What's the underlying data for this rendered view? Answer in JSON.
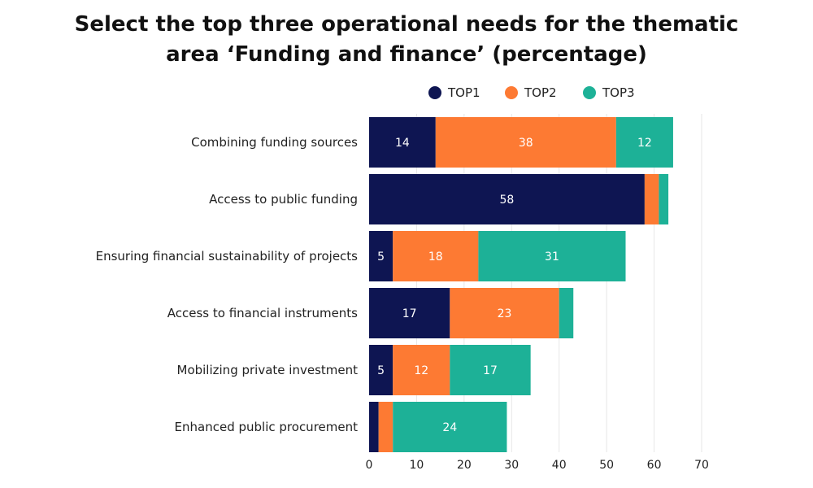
{
  "chart_data": {
    "type": "bar",
    "orientation": "horizontal",
    "stacked": true,
    "title_lines": [
      "Select the top three operational needs for the thematic",
      "area ‘Funding and finance’ (percentage)"
    ],
    "categories": [
      "Combining funding sources",
      "Access to public funding",
      "Ensuring financial sustainability of projects",
      "Access to financial instruments",
      "Mobilizing private investment",
      "Enhanced public procurement"
    ],
    "series": [
      {
        "name": "TOP1",
        "color": "#0e1552",
        "values": [
          14,
          58,
          5,
          17,
          5,
          2
        ]
      },
      {
        "name": "TOP2",
        "color": "#fd7a33",
        "values": [
          38,
          3,
          18,
          23,
          12,
          3
        ]
      },
      {
        "name": "TOP3",
        "color": "#1db197",
        "values": [
          12,
          2,
          31,
          3,
          17,
          24
        ]
      }
    ],
    "label_min_value": 5,
    "xlim": [
      0,
      70
    ],
    "xticks": [
      0,
      10,
      20,
      30,
      40,
      50,
      60,
      70
    ],
    "grid": true,
    "legend_position": "top"
  }
}
